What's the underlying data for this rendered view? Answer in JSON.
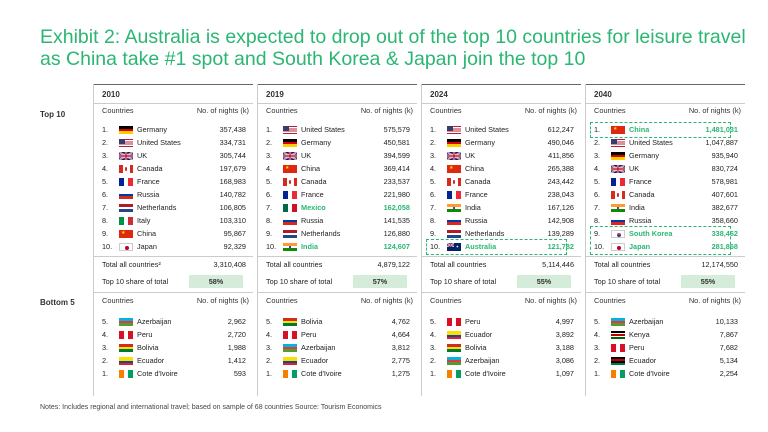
{
  "title": "Exhibit 2: Australia is expected to drop out of the top 10 countries for leisure travel as China take #1 spot and South Korea & Japan join the top 10",
  "sections": {
    "top10": "Top 10",
    "bottom5": "Bottom 5"
  },
  "headers": {
    "countries": "Countries",
    "nights": "No. of nights (k)"
  },
  "columns": [
    {
      "year": "2010",
      "top": [
        {
          "rank": "1.",
          "flag": "de",
          "name": "Germany",
          "value": "357,438"
        },
        {
          "rank": "2.",
          "flag": "us",
          "name": "United States",
          "value": "334,731"
        },
        {
          "rank": "3.",
          "flag": "uk",
          "name": "UK",
          "value": "305,744"
        },
        {
          "rank": "4.",
          "flag": "ca",
          "name": "Canada",
          "value": "197,679"
        },
        {
          "rank": "5.",
          "flag": "fr",
          "name": "France",
          "value": "168,983"
        },
        {
          "rank": "6.",
          "flag": "ru",
          "name": "Russia",
          "value": "140,782"
        },
        {
          "rank": "7.",
          "flag": "nl",
          "name": "Netherlands",
          "value": "106,805"
        },
        {
          "rank": "8.",
          "flag": "it",
          "name": "Italy",
          "value": "103,310"
        },
        {
          "rank": "9.",
          "flag": "cn",
          "name": "China",
          "value": "95,867"
        },
        {
          "rank": "10.",
          "flag": "jp",
          "name": "Japan",
          "value": "92,329"
        }
      ],
      "total_label": "Total all countries²",
      "total_value": "3,310,408",
      "share_label": "Top 10 share of total",
      "share_value": "58%",
      "bottom": [
        {
          "rank": "5.",
          "flag": "az",
          "name": "Azerbaijan",
          "value": "2,962"
        },
        {
          "rank": "4.",
          "flag": "pe",
          "name": "Peru",
          "value": "2,720"
        },
        {
          "rank": "3.",
          "flag": "bo",
          "name": "Bolivia",
          "value": "1,988"
        },
        {
          "rank": "2.",
          "flag": "ec",
          "name": "Ecuador",
          "value": "1,412"
        },
        {
          "rank": "1.",
          "flag": "ci",
          "name": "Cote d'Ivoire",
          "value": "593"
        }
      ]
    },
    {
      "year": "2019",
      "top": [
        {
          "rank": "1.",
          "flag": "us",
          "name": "United States",
          "value": "575,579"
        },
        {
          "rank": "2.",
          "flag": "de",
          "name": "Germany",
          "value": "450,581"
        },
        {
          "rank": "3.",
          "flag": "uk",
          "name": "UK",
          "value": "394,599"
        },
        {
          "rank": "4.",
          "flag": "cn",
          "name": "China",
          "value": "369,414"
        },
        {
          "rank": "5.",
          "flag": "ca",
          "name": "Canada",
          "value": "233,537"
        },
        {
          "rank": "6.",
          "flag": "fr",
          "name": "France",
          "value": "221,980"
        },
        {
          "rank": "7.",
          "flag": "mx",
          "name": "Mexico",
          "value": "162,058",
          "hl": true
        },
        {
          "rank": "8.",
          "flag": "ru",
          "name": "Russia",
          "value": "141,535"
        },
        {
          "rank": "9.",
          "flag": "nl",
          "name": "Netherlands",
          "value": "126,880"
        },
        {
          "rank": "10.",
          "flag": "in",
          "name": "India",
          "value": "124,607",
          "hl": true
        }
      ],
      "total_label": "Total all countries",
      "total_value": "4,879,122",
      "share_label": "Top 10 share of total",
      "share_value": "57%",
      "bottom": [
        {
          "rank": "5.",
          "flag": "bo",
          "name": "Bolivia",
          "value": "4,762"
        },
        {
          "rank": "4.",
          "flag": "pe",
          "name": "Peru",
          "value": "4,664"
        },
        {
          "rank": "3.",
          "flag": "az",
          "name": "Azerbaijan",
          "value": "3,812"
        },
        {
          "rank": "2.",
          "flag": "ec",
          "name": "Ecuador",
          "value": "2,775"
        },
        {
          "rank": "1.",
          "flag": "ci",
          "name": "Cote d'Ivoire",
          "value": "1,275"
        }
      ]
    },
    {
      "year": "2024",
      "top": [
        {
          "rank": "1.",
          "flag": "us",
          "name": "United States",
          "value": "612,247"
        },
        {
          "rank": "2.",
          "flag": "de",
          "name": "Germany",
          "value": "490,046"
        },
        {
          "rank": "3.",
          "flag": "uk",
          "name": "UK",
          "value": "411,856"
        },
        {
          "rank": "4.",
          "flag": "cn",
          "name": "China",
          "value": "265,388"
        },
        {
          "rank": "5.",
          "flag": "ca",
          "name": "Canada",
          "value": "243,442"
        },
        {
          "rank": "6.",
          "flag": "fr",
          "name": "France",
          "value": "238,043"
        },
        {
          "rank": "7.",
          "flag": "in",
          "name": "India",
          "value": "167,126"
        },
        {
          "rank": "8.",
          "flag": "ru",
          "name": "Russia",
          "value": "142,908"
        },
        {
          "rank": "9.",
          "flag": "nl",
          "name": "Netherlands",
          "value": "139,289"
        },
        {
          "rank": "10.",
          "flag": "au",
          "name": "Australia",
          "value": "121,782",
          "hl": true
        }
      ],
      "total_label": "Total all countries",
      "total_value": "5,114,446",
      "share_label": "Top 10 share of total",
      "share_value": "55%",
      "bottom": [
        {
          "rank": "5.",
          "flag": "pe",
          "name": "Peru",
          "value": "4,997"
        },
        {
          "rank": "4.",
          "flag": "ec",
          "name": "Ecuador",
          "value": "3,892"
        },
        {
          "rank": "3.",
          "flag": "bo",
          "name": "Bolivia",
          "value": "3,188"
        },
        {
          "rank": "2.",
          "flag": "az",
          "name": "Azerbaijan",
          "value": "3,086"
        },
        {
          "rank": "1.",
          "flag": "ci",
          "name": "Cote d'Ivoire",
          "value": "1,097"
        }
      ]
    },
    {
      "year": "2040",
      "top": [
        {
          "rank": "1.",
          "flag": "cn",
          "name": "China",
          "value": "1,481,031",
          "hl": true
        },
        {
          "rank": "2.",
          "flag": "us",
          "name": "United States",
          "value": "1,047,887"
        },
        {
          "rank": "3.",
          "flag": "de",
          "name": "Germany",
          "value": "935,940"
        },
        {
          "rank": "4.",
          "flag": "uk",
          "name": "UK",
          "value": "830,724"
        },
        {
          "rank": "5.",
          "flag": "fr",
          "name": "France",
          "value": "578,981"
        },
        {
          "rank": "6.",
          "flag": "ca",
          "name": "Canada",
          "value": "407,601"
        },
        {
          "rank": "7.",
          "flag": "in",
          "name": "India",
          "value": "382,677"
        },
        {
          "rank": "8.",
          "flag": "ru",
          "name": "Russia",
          "value": "358,660"
        },
        {
          "rank": "9.",
          "flag": "kr",
          "name": "South Korea",
          "value": "338,462",
          "hl": true
        },
        {
          "rank": "10.",
          "flag": "jp",
          "name": "Japan",
          "value": "281,868",
          "hl": true
        }
      ],
      "total_label": "Total all countries",
      "total_value": "12,174,550",
      "share_label": "Top 10 share of total",
      "share_value": "55%",
      "bottom": [
        {
          "rank": "5.",
          "flag": "az",
          "name": "Azerbaijan",
          "value": "10,133"
        },
        {
          "rank": "4.",
          "flag": "ke",
          "name": "Kenya",
          "value": "7,867"
        },
        {
          "rank": "3.",
          "flag": "pe",
          "name": "Peru",
          "value": "7,682"
        },
        {
          "rank": "2.",
          "flag": "eg",
          "name": "Ecuador",
          "value": "5,134"
        },
        {
          "rank": "1.",
          "flag": "ci",
          "name": "Cote d'Ivoire",
          "value": "2,254"
        }
      ]
    }
  ],
  "notes": "Notes: Includes regional and international travel; based on sample of 68 countries   Source: Tourism Economics",
  "colors": {
    "accent": "#2bb673",
    "share_box": "#d4ecd9"
  }
}
